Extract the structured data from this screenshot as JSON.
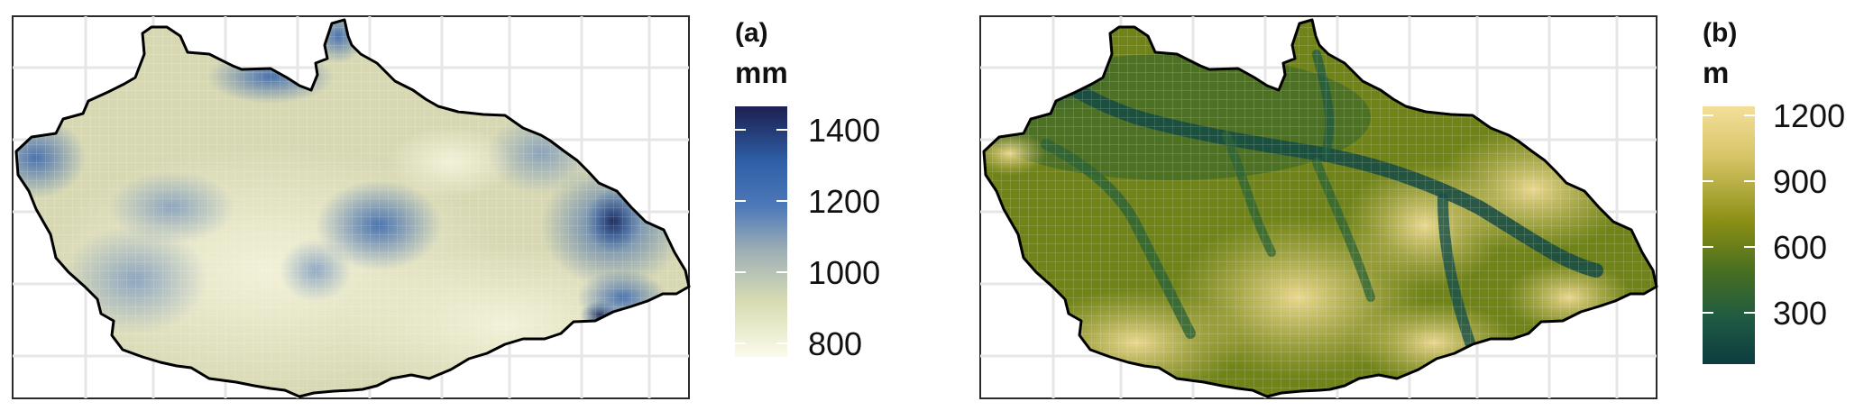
{
  "panels": [
    {
      "label": "(a)",
      "unit": "mm",
      "ticks": [
        "1400",
        "1200",
        "1000",
        "800"
      ],
      "colorbar": {
        "colors": [
          "#1c2050",
          "#2f5fa7",
          "#4d79b8",
          "#9fb0b6",
          "#d8dcb2",
          "#fbfbeb"
        ]
      }
    },
    {
      "label": "(b)",
      "unit": "m",
      "ticks": [
        "1200",
        "900",
        "600",
        "300"
      ],
      "colorbar": {
        "colors": [
          "#f4df9a",
          "#d6c466",
          "#8a8e14",
          "#456d22",
          "#1f5b42",
          "#0d3b40"
        ]
      }
    }
  ]
}
